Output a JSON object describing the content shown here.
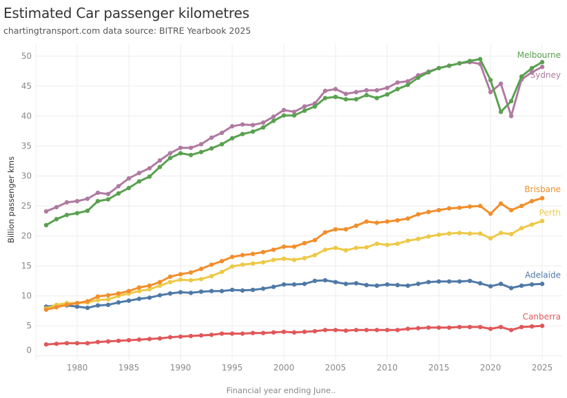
{
  "header": {
    "title": "Estimated Car passenger kilometres",
    "subtitle": "chartingtransport.com  data source: BITRE Yearbook 2025"
  },
  "chart_data": {
    "type": "line",
    "title": "Estimated Car passenger kilometres",
    "subtitle": "chartingtransport.com  data source: BITRE Yearbook 2025",
    "xlabel": "Financial year ending June..",
    "ylabel": "Billion passenger kms",
    "xlim": [
      1977,
      2025
    ],
    "ylim": [
      0,
      50
    ],
    "x_ticks": [
      1980,
      1985,
      1990,
      1995,
      2000,
      2005,
      2010,
      2015,
      2020,
      2025
    ],
    "y_ticks": [
      0,
      5,
      10,
      15,
      20,
      25,
      30,
      35,
      40,
      45,
      50
    ],
    "grid": true,
    "legend": "direct labels at line ends (right)",
    "x": [
      1977,
      1978,
      1979,
      1980,
      1981,
      1982,
      1983,
      1984,
      1985,
      1986,
      1987,
      1988,
      1989,
      1990,
      1991,
      1992,
      1993,
      1994,
      1995,
      1996,
      1997,
      1998,
      1999,
      2000,
      2001,
      2002,
      2003,
      2004,
      2005,
      2006,
      2007,
      2008,
      2009,
      2010,
      2011,
      2012,
      2013,
      2014,
      2015,
      2016,
      2017,
      2018,
      2019,
      2020,
      2021,
      2022,
      2023,
      2024,
      2025
    ],
    "series": [
      {
        "name": "Melbourne",
        "color": "#59a14f",
        "values": [
          21.8,
          22.8,
          23.5,
          23.8,
          24.2,
          25.8,
          26.1,
          27.1,
          28.0,
          29.1,
          29.9,
          31.5,
          33.0,
          33.8,
          33.5,
          34.0,
          34.6,
          35.3,
          36.3,
          37.0,
          37.4,
          38.1,
          39.2,
          40.1,
          40.1,
          40.9,
          41.6,
          43.0,
          43.2,
          42.8,
          42.8,
          43.5,
          43.0,
          43.6,
          44.5,
          45.2,
          46.4,
          47.3,
          48.0,
          48.4,
          48.8,
          49.2,
          49.5,
          46.0,
          40.7,
          42.5,
          46.6,
          48.0,
          49.0
        ]
      },
      {
        "name": "Sydney",
        "color": "#b07aa1",
        "values": [
          24.1,
          24.8,
          25.6,
          25.8,
          26.2,
          27.2,
          27.0,
          28.3,
          29.6,
          30.5,
          31.3,
          32.6,
          33.8,
          34.7,
          34.7,
          35.3,
          36.4,
          37.2,
          38.3,
          38.6,
          38.5,
          38.9,
          39.9,
          41.0,
          40.7,
          41.6,
          42.1,
          44.2,
          44.5,
          43.7,
          44.0,
          44.3,
          44.3,
          44.7,
          45.6,
          45.8,
          46.8,
          47.4,
          48.0,
          48.4,
          48.8,
          49.0,
          48.7,
          44.0,
          45.4,
          40.0,
          46.1,
          47.3,
          48.2
        ]
      },
      {
        "name": "Brisbane",
        "color": "#f28e2b",
        "values": [
          7.7,
          8.1,
          8.5,
          8.8,
          9.1,
          9.9,
          10.1,
          10.4,
          10.8,
          11.4,
          11.7,
          12.3,
          13.2,
          13.6,
          13.9,
          14.5,
          15.2,
          15.8,
          16.5,
          16.8,
          17.0,
          17.3,
          17.7,
          18.2,
          18.2,
          18.8,
          19.3,
          20.6,
          21.1,
          21.1,
          21.7,
          22.4,
          22.2,
          22.4,
          22.6,
          22.9,
          23.6,
          24.0,
          24.3,
          24.6,
          24.7,
          24.9,
          25.0,
          23.7,
          25.4,
          24.3,
          25.0,
          25.8,
          26.3
        ]
      },
      {
        "name": "Perth",
        "color": "#edc948",
        "values": [
          7.9,
          8.5,
          8.8,
          8.8,
          8.9,
          9.3,
          9.4,
          10.0,
          10.4,
          10.8,
          11.1,
          11.7,
          12.3,
          12.7,
          12.6,
          12.8,
          13.3,
          14.0,
          14.9,
          15.2,
          15.4,
          15.6,
          16.0,
          16.2,
          16.0,
          16.3,
          16.8,
          17.7,
          18.0,
          17.6,
          18.0,
          18.1,
          18.7,
          18.5,
          18.7,
          19.2,
          19.5,
          19.9,
          20.2,
          20.4,
          20.5,
          20.4,
          20.4,
          19.6,
          20.5,
          20.3,
          21.3,
          21.9,
          22.5
        ]
      },
      {
        "name": "Adelaide",
        "color": "#4e79a7",
        "values": [
          8.2,
          8.4,
          8.4,
          8.2,
          8.0,
          8.4,
          8.5,
          8.9,
          9.2,
          9.5,
          9.7,
          10.1,
          10.4,
          10.6,
          10.5,
          10.7,
          10.8,
          10.8,
          11.0,
          10.9,
          11.0,
          11.2,
          11.5,
          11.9,
          11.9,
          12.0,
          12.5,
          12.6,
          12.3,
          12.0,
          12.1,
          11.8,
          11.7,
          11.9,
          11.8,
          11.7,
          12.0,
          12.3,
          12.4,
          12.4,
          12.4,
          12.5,
          12.1,
          11.6,
          12.0,
          11.3,
          11.7,
          11.9,
          12.0
        ]
      },
      {
        "name": "Canberra",
        "color": "#e15759",
        "values": [
          1.9,
          2.0,
          2.1,
          2.1,
          2.1,
          2.3,
          2.4,
          2.5,
          2.6,
          2.7,
          2.8,
          2.9,
          3.1,
          3.2,
          3.3,
          3.4,
          3.5,
          3.7,
          3.7,
          3.7,
          3.8,
          3.8,
          3.9,
          4.0,
          3.9,
          4.0,
          4.1,
          4.3,
          4.3,
          4.2,
          4.3,
          4.3,
          4.3,
          4.3,
          4.3,
          4.5,
          4.6,
          4.7,
          4.7,
          4.7,
          4.8,
          4.8,
          4.8,
          4.5,
          4.8,
          4.3,
          4.8,
          4.9,
          5.0
        ]
      }
    ]
  }
}
